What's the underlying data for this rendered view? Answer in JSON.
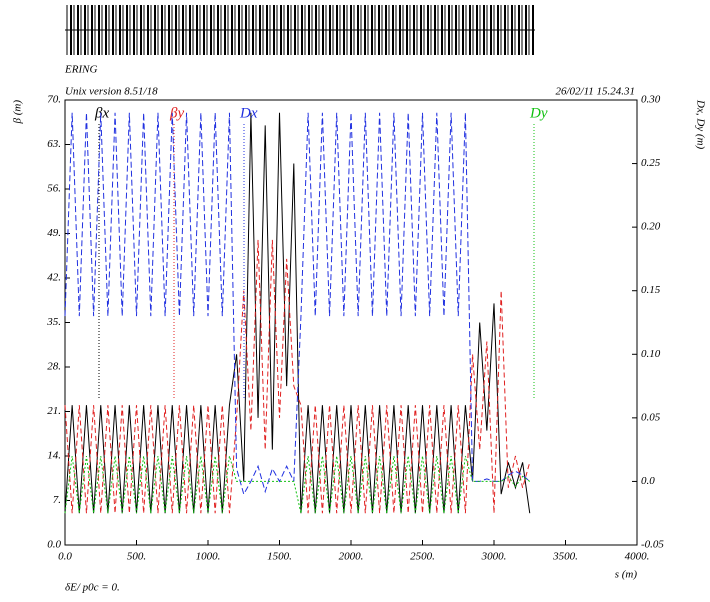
{
  "chart_data": {
    "type": "line",
    "title": "ERING",
    "subtitle": "Unix version 8.51/18",
    "timestamp": "26/02/11  15.24.31",
    "y_label": "β (m)",
    "y2_label": "Dx, Dy (m)",
    "x_label": "s (m)",
    "footnote": "δE/ p0c  =  0.",
    "x": [
      0,
      50,
      100,
      150,
      200,
      250,
      300,
      350,
      400,
      450,
      500,
      550,
      600,
      650,
      700,
      750,
      800,
      850,
      900,
      950,
      1000,
      1050,
      1100,
      1150,
      1200,
      1250,
      1300,
      1350,
      1400,
      1450,
      1500,
      1550,
      1600,
      1650,
      1700,
      1750,
      1800,
      1850,
      1900,
      1950,
      2000,
      2050,
      2100,
      2150,
      2200,
      2250,
      2300,
      2350,
      2400,
      2450,
      2500,
      2550,
      2600,
      2650,
      2700,
      2750,
      2800,
      2850,
      2900,
      2950,
      3000,
      3050,
      3100,
      3150,
      3200,
      3250
    ],
    "series": [
      {
        "name": "βx",
        "color": "#000000",
        "dash": "none",
        "values": [
          5,
          22,
          5,
          22,
          5,
          22,
          5,
          22,
          5,
          22,
          5,
          22,
          5,
          22,
          5,
          22,
          5,
          22,
          5,
          22,
          5,
          22,
          5,
          22,
          30,
          10,
          68,
          20,
          66,
          15,
          68,
          25,
          60,
          5,
          22,
          5,
          22,
          5,
          22,
          5,
          22,
          5,
          22,
          5,
          22,
          5,
          22,
          5,
          22,
          5,
          22,
          5,
          22,
          5,
          22,
          5,
          22,
          10,
          35,
          18,
          38,
          8,
          13,
          9,
          13,
          5
        ]
      },
      {
        "name": "βy",
        "color": "#e02020",
        "dash": "5,3",
        "values": [
          22,
          5,
          22,
          5,
          22,
          5,
          22,
          5,
          22,
          5,
          22,
          5,
          22,
          5,
          22,
          5,
          22,
          5,
          22,
          5,
          22,
          5,
          22,
          5,
          20,
          40,
          18,
          48,
          15,
          48,
          20,
          45,
          25,
          22,
          5,
          22,
          5,
          22,
          5,
          22,
          5,
          22,
          5,
          22,
          5,
          22,
          5,
          22,
          5,
          22,
          5,
          22,
          5,
          22,
          5,
          22,
          5,
          30,
          15,
          32,
          5,
          40,
          9,
          14,
          9,
          13
        ]
      },
      {
        "name": "Dx",
        "color": "#2030e0",
        "dash": "6,3",
        "axis": "y2",
        "values": [
          0.13,
          0.29,
          0.13,
          0.29,
          0.13,
          0.29,
          0.13,
          0.29,
          0.13,
          0.29,
          0.13,
          0.29,
          0.13,
          0.29,
          0.13,
          0.29,
          0.13,
          0.29,
          0.13,
          0.29,
          0.13,
          0.29,
          0.13,
          0.29,
          0.01,
          -0.01,
          0,
          0.012,
          -0.008,
          0.01,
          0,
          0.012,
          0,
          0.13,
          0.29,
          0.13,
          0.29,
          0.13,
          0.29,
          0.13,
          0.29,
          0.13,
          0.29,
          0.13,
          0.29,
          0.13,
          0.29,
          0.13,
          0.29,
          0.13,
          0.29,
          0.13,
          0.29,
          0.13,
          0.29,
          0.13,
          0.29,
          0,
          0,
          0.002,
          0,
          0,
          0.005,
          0.008,
          0.005,
          0
        ]
      },
      {
        "name": "Dy",
        "color": "#10c010",
        "dash": "2,2",
        "axis": "y2",
        "values": [
          -0.025,
          0.02,
          -0.025,
          0.02,
          -0.025,
          0.02,
          -0.025,
          0.02,
          -0.025,
          0.02,
          -0.025,
          0.02,
          -0.025,
          0.02,
          -0.025,
          0.02,
          -0.025,
          0.02,
          -0.025,
          0.02,
          -0.025,
          0.02,
          -0.025,
          0.02,
          0,
          0,
          0,
          0,
          0,
          0,
          0,
          0,
          0,
          -0.025,
          0.02,
          -0.025,
          0.02,
          -0.025,
          0.02,
          -0.025,
          0.02,
          -0.025,
          0.02,
          -0.025,
          0.02,
          -0.025,
          0.02,
          -0.025,
          0.02,
          -0.025,
          0.02,
          -0.025,
          0.02,
          -0.025,
          0.02,
          -0.025,
          0.02,
          0,
          0,
          0,
          0,
          0,
          0.004,
          -0.004,
          0.004,
          0
        ]
      }
    ],
    "xlim": [
      0,
      4000
    ],
    "xticks": [
      {
        "value": 0,
        "label": "0.0"
      },
      {
        "value": 500,
        "label": "500."
      },
      {
        "value": 1000,
        "label": "1000."
      },
      {
        "value": 1500,
        "label": "1500."
      },
      {
        "value": 2000,
        "label": "2000."
      },
      {
        "value": 2500,
        "label": "2500."
      },
      {
        "value": 3000,
        "label": "3000."
      },
      {
        "value": 3500,
        "label": "3500."
      },
      {
        "value": 4000,
        "label": "4000."
      }
    ],
    "ylim": [
      0,
      70
    ],
    "yticks": [
      {
        "value": 0,
        "label": "0.0"
      },
      {
        "value": 7,
        "label": "7."
      },
      {
        "value": 14,
        "label": "14."
      },
      {
        "value": 21,
        "label": "21."
      },
      {
        "value": 28,
        "label": "28."
      },
      {
        "value": 35,
        "label": "35."
      },
      {
        "value": 42,
        "label": "42."
      },
      {
        "value": 49,
        "label": "49."
      },
      {
        "value": 56,
        "label": "56."
      },
      {
        "value": 63,
        "label": "63."
      },
      {
        "value": 70,
        "label": "70."
      }
    ],
    "y2lim": [
      -0.05,
      0.3
    ],
    "y2ticks": [
      -0.05,
      {
        "value": 0,
        "label": "0.0"
      },
      0.05,
      {
        "value": 0.1,
        "label": "0.10"
      },
      0.15,
      {
        "value": 0.2,
        "label": "0.20"
      },
      0.25,
      {
        "value": 0.3,
        "label": "0.30"
      }
    ]
  }
}
